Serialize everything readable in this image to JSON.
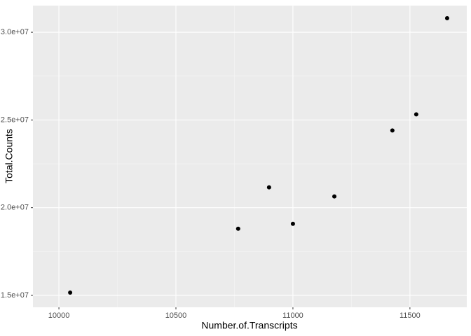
{
  "chart_data": {
    "type": "scatter",
    "x_label": "Number.of.Transcripts",
    "y_label": "Total.Counts",
    "x": [
      10048,
      10766,
      10898,
      11000,
      11177,
      11425,
      11527,
      11659
    ],
    "values": [
      15160000,
      18800000,
      21160000,
      19080000,
      20640000,
      24400000,
      25320000,
      30800000
    ],
    "color": "#000000",
    "xlim": [
      9889,
      11743
    ],
    "xticks": [
      10000,
      10500,
      11000,
      11500
    ],
    "ylim": [
      14320000,
      31520000
    ],
    "yticks": [
      {
        "value": 15000000,
        "label": "1.5e+07"
      },
      {
        "value": 20000000,
        "label": "2.0e+07"
      },
      {
        "value": 25000000,
        "label": "2.5e+07"
      },
      {
        "value": 30000000,
        "label": "3.0e+07"
      }
    ],
    "grid": true
  }
}
